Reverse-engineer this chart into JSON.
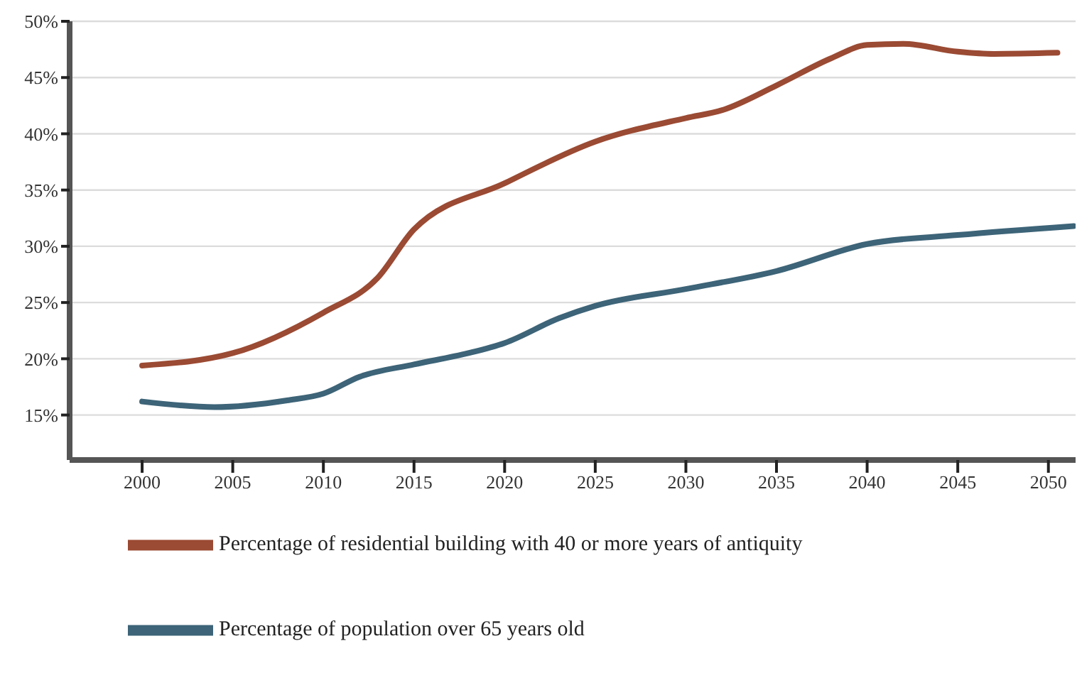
{
  "chart_data": {
    "type": "line",
    "x": [
      2000,
      2005,
      2010,
      2013,
      2015,
      2020,
      2025,
      2030,
      2032,
      2035,
      2038,
      2040,
      2042,
      2045,
      2047,
      2050.5
    ],
    "series": [
      {
        "name": "Percentage of residential building with 40 or more years of antiquity",
        "color": "#9b4a33",
        "values": [
          19.4,
          20.5,
          24.1,
          27.2,
          31.5,
          35.6,
          39.3,
          41.4,
          42.1,
          44.3,
          46.7,
          47.9,
          48.0,
          47.3,
          47.1,
          47.2
        ]
      },
      {
        "name": "Percentage of population over 65 years old",
        "color": "#3d6478",
        "x": [
          2000,
          2004,
          2008,
          2010,
          2012,
          2015,
          2018,
          2020,
          2023,
          2025,
          2030,
          2035,
          2040,
          2045,
          2051.4
        ],
        "values": [
          16.2,
          15.7,
          16.3,
          16.9,
          18.4,
          19.5,
          20.5,
          21.4,
          23.6,
          24.7,
          26.2,
          27.8,
          30.2,
          31.0,
          31.8
        ]
      }
    ],
    "xlim": [
      1996,
      2051.5
    ],
    "xticks": [
      2000,
      2005,
      2010,
      2015,
      2020,
      2025,
      2030,
      2035,
      2040,
      2045,
      2050
    ],
    "ylim": [
      11,
      50
    ],
    "yticks": [
      {
        "value": 15,
        "label": "15%"
      },
      {
        "value": 20,
        "label": "20%"
      },
      {
        "value": 25,
        "label": "25%"
      },
      {
        "value": 30,
        "label": "30%"
      },
      {
        "value": 35,
        "label": "35%"
      },
      {
        "value": 40,
        "label": "40%"
      },
      {
        "value": 45,
        "label": "45%"
      },
      {
        "value": 50,
        "label": "50%"
      }
    ],
    "grid": "y",
    "legend": "bottom",
    "marker": "none",
    "line_style": "solid"
  }
}
